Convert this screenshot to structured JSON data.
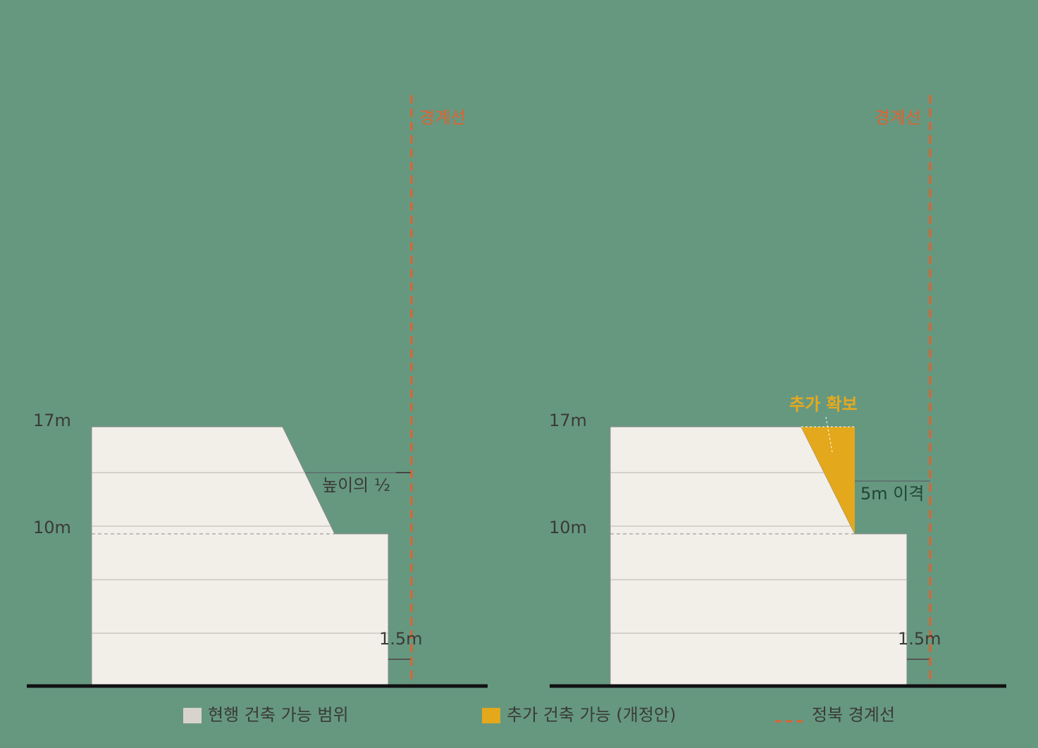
{
  "left_panel": {
    "height_top": "17m",
    "height_mid": "10m",
    "boundary": "경계선",
    "setback": "높이의 ½",
    "offset": "1.5m"
  },
  "right_panel": {
    "height_top": "17m",
    "height_mid": "10m",
    "boundary": "경계선",
    "gain": "추가 확보",
    "setback": "5m 이격",
    "offset": "1.5m"
  },
  "legend": {
    "items": [
      "현행 건축 가능 범위",
      "추가 건축 가능 (개정안)",
      "정북 경계선"
    ]
  }
}
